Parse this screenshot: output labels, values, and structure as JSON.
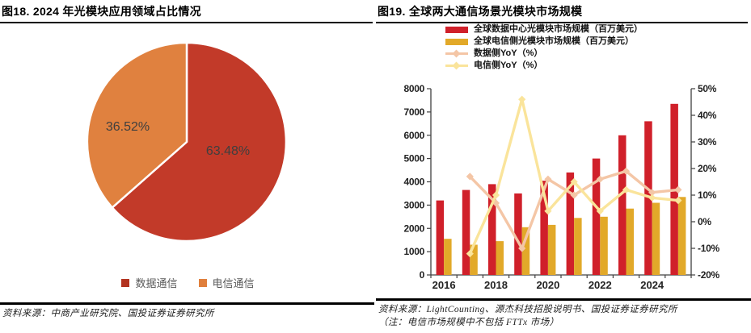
{
  "figure18": {
    "title": "图18. 2024 年光模块应用领域占比情况",
    "source": "资料来源：中商产业研究院、国投证券证券研究所",
    "legend": [
      {
        "label": "数据通信",
        "color": "#b23320"
      },
      {
        "label": "电信通信",
        "color": "#e07f3c"
      }
    ]
  },
  "figure19": {
    "title": "图19. 全球两大通信场景光模块市场规模",
    "source_line1": "资料来源：LightCounting、源杰科技招股说明书、国投证券证券研究所",
    "source_line2": "（注：电信市场规模中不包括 FTTx 市场）"
  },
  "chart_data": [
    {
      "type": "pie",
      "title": "2024 年光模块应用领域占比情况",
      "start_angle": "12-oclock-clockwise",
      "legend_position": "bottom",
      "slices": [
        {
          "label": "数据通信",
          "value": 63.48,
          "display": "63.48%",
          "color": "#c23a29"
        },
        {
          "label": "电信通信",
          "value": 36.52,
          "display": "36.52%",
          "color": "#e0813f"
        }
      ]
    },
    {
      "type": "bar+line",
      "title": "全球两大通信场景光模块市场规模",
      "categories": [
        "2016",
        "2017",
        "2018",
        "2019",
        "2020",
        "2021",
        "2022",
        "2023",
        "2024",
        "2025"
      ],
      "bar_series": [
        {
          "name": "全球数据中心光模块市场规模（百万美元）",
          "color": "#d0202a",
          "axis": "left",
          "values": [
            3200,
            3650,
            3900,
            3500,
            4050,
            4400,
            5000,
            6000,
            6600,
            7350
          ]
        },
        {
          "name": "全球电信侧光模块市场规模（百万美元）",
          "color": "#e2a929",
          "axis": "left",
          "values": [
            1550,
            1300,
            1450,
            2050,
            2150,
            2450,
            2500,
            2850,
            3100,
            3350
          ]
        }
      ],
      "line_series": [
        {
          "name": "数据侧YoY（%）",
          "color": "#f4c6a6",
          "axis": "right",
          "values": [
            null,
            17,
            7,
            -10,
            16,
            10,
            16,
            19,
            11,
            12
          ]
        },
        {
          "name": "电信侧YoY（%）",
          "color": "#fae49b",
          "axis": "right",
          "values": [
            null,
            -12,
            10,
            46,
            4,
            15,
            4,
            12,
            9,
            8
          ]
        }
      ],
      "left_axis": {
        "min": 0,
        "max": 8000,
        "step": 1000,
        "ticks": [
          "0",
          "1000",
          "2000",
          "3000",
          "4000",
          "5000",
          "6000",
          "7000",
          "8000"
        ]
      },
      "right_axis": {
        "min": -20,
        "max": 50,
        "step": 10,
        "ticks": [
          "-20%",
          "-10%",
          "0%",
          "10%",
          "20%",
          "30%",
          "40%",
          "50%"
        ]
      },
      "x_tick_labels": [
        "2016",
        "2018",
        "2020",
        "2022",
        "2024"
      ],
      "grid": false,
      "legend_position": "top"
    }
  ]
}
